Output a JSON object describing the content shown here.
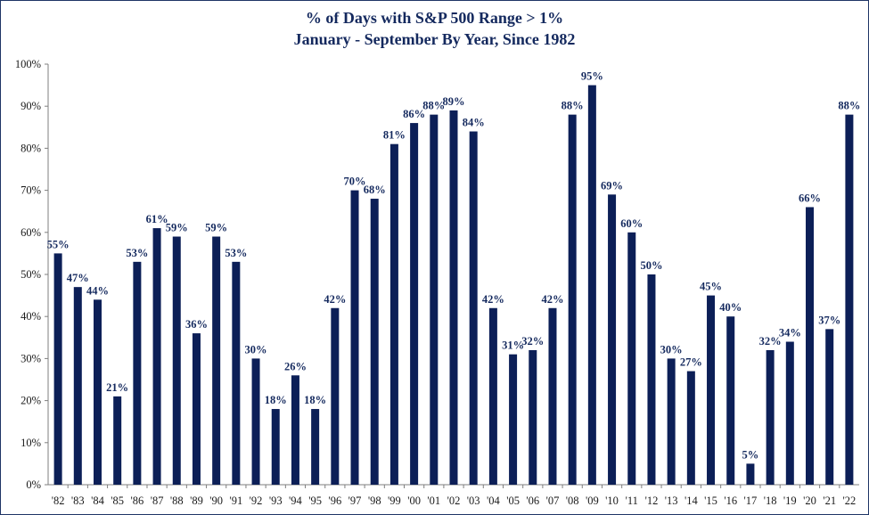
{
  "chart_data": {
    "type": "bar",
    "title": "% of Days with S&P 500 Range > 1%",
    "subtitle": "January - September By Year, Since 1982",
    "xlabel": "",
    "ylabel": "",
    "ylim": [
      0,
      100
    ],
    "yticks": [
      "0%",
      "10%",
      "20%",
      "30%",
      "40%",
      "50%",
      "60%",
      "70%",
      "80%",
      "90%",
      "100%"
    ],
    "categories": [
      "'82",
      "'83",
      "'84",
      "'85",
      "'86",
      "'87",
      "'88",
      "'89",
      "'90",
      "'91",
      "'92",
      "'93",
      "'94",
      "'95",
      "'96",
      "'97",
      "'98",
      "'99",
      "'00",
      "'01",
      "'02",
      "'03",
      "'04",
      "'05",
      "'06",
      "'07",
      "'08",
      "'09",
      "'10",
      "'11",
      "'12",
      "'13",
      "'14",
      "'15",
      "'16",
      "'17",
      "'18",
      "'19",
      "'20",
      "'21",
      "'22"
    ],
    "values": [
      55,
      47,
      44,
      21,
      53,
      61,
      59,
      36,
      59,
      53,
      30,
      18,
      26,
      18,
      42,
      70,
      68,
      81,
      86,
      88,
      89,
      84,
      42,
      31,
      32,
      42,
      88,
      95,
      69,
      60,
      50,
      30,
      27,
      45,
      40,
      5,
      32,
      34,
      66,
      37,
      88
    ],
    "data_labels": [
      "55%",
      "47%",
      "44%",
      "21%",
      "53%",
      "61%",
      "59%",
      "36%",
      "59%",
      "53%",
      "30%",
      "18%",
      "26%",
      "18%",
      "42%",
      "70%",
      "68%",
      "81%",
      "86%",
      "88%",
      "89%",
      "84%",
      "42%",
      "31%",
      "32%",
      "42%",
      "88%",
      "95%",
      "69%",
      "60%",
      "50%",
      "30%",
      "27%",
      "45%",
      "40%",
      "5%",
      "32%",
      "34%",
      "66%",
      "37%",
      "88%"
    ],
    "bar_color": "#0c1f57",
    "grid": false,
    "legend": "none"
  }
}
